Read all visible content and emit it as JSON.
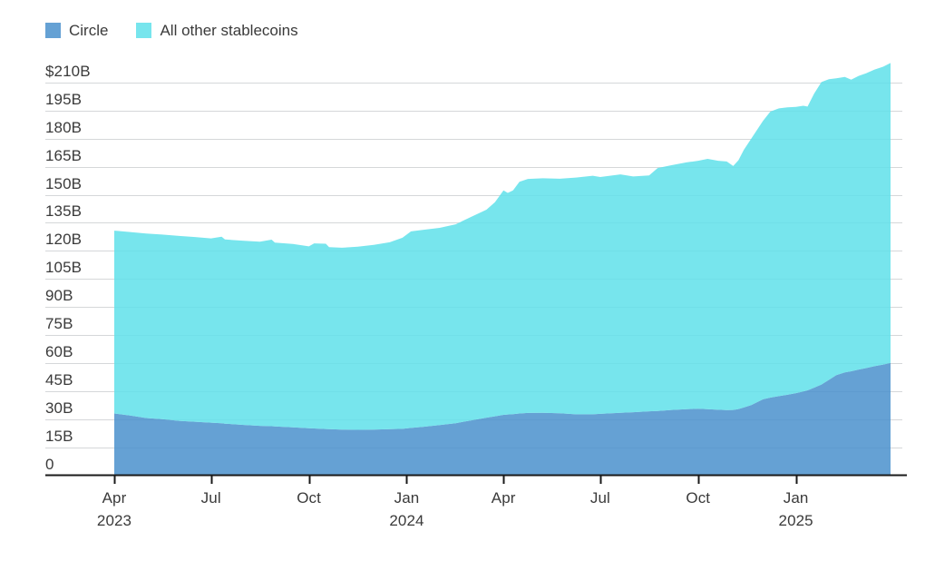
{
  "legend": {
    "items": [
      {
        "id": "circle",
        "label": "Circle",
        "color": "#4a90cc"
      },
      {
        "id": "other",
        "label": "All other stablecoins",
        "color": "#5fe0ea"
      }
    ]
  },
  "chart_data": {
    "type": "area",
    "stacked": true,
    "title": "",
    "xlabel": "",
    "ylabel": "",
    "grid": true,
    "legend_position": "top-left",
    "units": "USD billions",
    "colors": {
      "circle": "#4a90cc",
      "other": "#5fe0ea",
      "fill_opacity": 0.85,
      "gridline": "#d5d7d9",
      "axis": "#1a1a1a",
      "text": "#3a3a3a"
    },
    "y_axis": {
      "min": 0,
      "max": 210,
      "step": 15,
      "values": [
        210,
        195,
        180,
        165,
        150,
        135,
        120,
        105,
        90,
        75,
        60,
        45,
        30,
        15,
        0
      ],
      "labels": [
        "$210B",
        "195B",
        "180B",
        "165B",
        "150B",
        "135B",
        "120B",
        "105B",
        "90B",
        "75B",
        "60B",
        "45B",
        "30B",
        "15B",
        "0"
      ]
    },
    "x_axis": {
      "domain": [
        "2023-04-01",
        "2025-03-31"
      ],
      "ticks": [
        {
          "label": "Apr",
          "year": "2023",
          "date": "2023-04-01"
        },
        {
          "label": "Jul",
          "year": "",
          "date": "2023-07-01"
        },
        {
          "label": "Oct",
          "year": "",
          "date": "2023-10-01"
        },
        {
          "label": "Jan",
          "year": "2024",
          "date": "2024-01-01"
        },
        {
          "label": "Apr",
          "year": "",
          "date": "2024-04-01"
        },
        {
          "label": "Jul",
          "year": "",
          "date": "2024-07-01"
        },
        {
          "label": "Oct",
          "year": "",
          "date": "2024-10-01"
        },
        {
          "label": "Jan",
          "year": "2025",
          "date": "2025-01-01"
        }
      ]
    },
    "dates": [
      "2023-04-01",
      "2023-04-16",
      "2023-05-01",
      "2023-05-16",
      "2023-06-01",
      "2023-06-16",
      "2023-07-01",
      "2023-07-11",
      "2023-07-14",
      "2023-08-01",
      "2023-08-16",
      "2023-08-27",
      "2023-08-30",
      "2023-09-16",
      "2023-10-01",
      "2023-10-06",
      "2023-10-17",
      "2023-10-20",
      "2023-11-01",
      "2023-11-16",
      "2023-12-01",
      "2023-12-16",
      "2023-12-28",
      "2024-01-05",
      "2024-01-16",
      "2024-02-01",
      "2024-02-16",
      "2024-03-01",
      "2024-03-16",
      "2024-03-24",
      "2024-04-01",
      "2024-04-05",
      "2024-04-10",
      "2024-04-16",
      "2024-04-24",
      "2024-05-08",
      "2024-05-24",
      "2024-06-08",
      "2024-06-24",
      "2024-07-01",
      "2024-07-20",
      "2024-08-01",
      "2024-08-16",
      "2024-08-24",
      "2024-09-06",
      "2024-09-20",
      "2024-10-01",
      "2024-10-10",
      "2024-10-20",
      "2024-10-28",
      "2024-11-03",
      "2024-11-08",
      "2024-11-13",
      "2024-11-20",
      "2024-12-01",
      "2024-12-08",
      "2024-12-16",
      "2024-12-24",
      "2025-01-01",
      "2025-01-08",
      "2025-01-12",
      "2025-01-18",
      "2025-01-25",
      "2025-02-01",
      "2025-02-08",
      "2025-02-16",
      "2025-02-22",
      "2025-03-01",
      "2025-03-08",
      "2025-03-16",
      "2025-03-24",
      "2025-03-31"
    ],
    "series": [
      {
        "name": "Circle",
        "values": [
          33.0,
          31.9,
          30.6,
          30.0,
          29.1,
          28.6,
          28.1,
          27.8,
          27.6,
          26.9,
          26.4,
          26.2,
          26.1,
          25.6,
          25.1,
          25.0,
          24.7,
          24.6,
          24.4,
          24.3,
          24.4,
          24.6,
          24.8,
          25.3,
          25.9,
          26.8,
          27.8,
          29.3,
          30.8,
          31.5,
          32.3,
          32.5,
          32.7,
          33.0,
          33.3,
          33.4,
          33.1,
          32.6,
          32.6,
          32.8,
          33.4,
          33.7,
          34.2,
          34.4,
          34.9,
          35.3,
          35.6,
          35.3,
          35.0,
          34.8,
          34.9,
          35.4,
          36.2,
          37.5,
          40.6,
          41.5,
          42.3,
          43.0,
          43.9,
          44.8,
          45.4,
          46.8,
          48.5,
          51.0,
          53.5,
          55.0,
          55.6,
          56.5,
          57.3,
          58.3,
          59.2,
          60.0
        ]
      },
      {
        "name": "All other stablecoins",
        "values": [
          97.8,
          98.2,
          98.7,
          98.7,
          98.9,
          98.8,
          98.6,
          99.8,
          98.5,
          98.5,
          98.5,
          99.8,
          98.3,
          98.1,
          97.3,
          99.0,
          99.1,
          97.4,
          97.3,
          97.9,
          98.8,
          100.0,
          102.2,
          105.1,
          105.3,
          105.5,
          106.4,
          108.7,
          111.2,
          114.5,
          120.0,
          118.5,
          119.6,
          124.0,
          125.2,
          125.4,
          125.5,
          126.6,
          127.6,
          126.7,
          127.5,
          126.1,
          126.2,
          129.9,
          130.9,
          132.0,
          132.6,
          133.9,
          133.2,
          133.0,
          130.5,
          133.1,
          137.8,
          142.5,
          148.9,
          153.0,
          153.9,
          153.8,
          153.1,
          152.8,
          151.8,
          157.2,
          161.8,
          160.8,
          158.8,
          158.0,
          156.0,
          157.1,
          157.7,
          158.7,
          159.3,
          160.5
        ]
      }
    ]
  }
}
